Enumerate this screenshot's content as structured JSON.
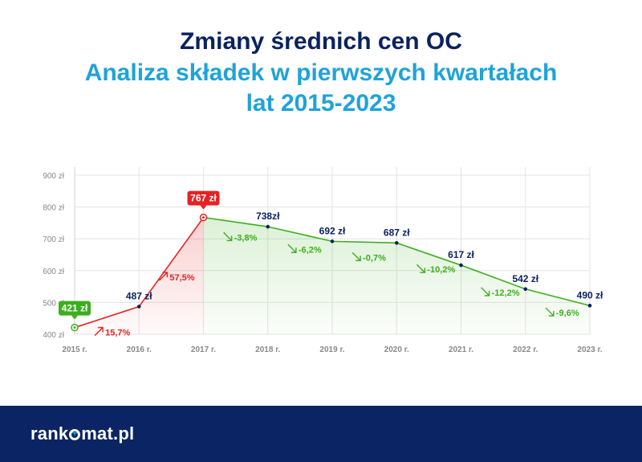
{
  "header": {
    "title_line1": "Zmiany średnich cen OC",
    "title_line2": "Analiza składek w pierwszych kwartałach",
    "title_line3": "lat 2015-2023"
  },
  "footer": {
    "logo_part1": "rank",
    "logo_part2": "mat.pl"
  },
  "chart_data": {
    "type": "line",
    "categories": [
      "2015 r.",
      "2016 r.",
      "2017 r.",
      "2018 r.",
      "2019 r.",
      "2020 r.",
      "2021 r.",
      "2022 r.",
      "2023 r."
    ],
    "values": [
      421,
      487,
      767,
      738,
      692,
      687,
      617,
      542,
      490
    ],
    "value_labels": [
      "421 zł",
      "487 zł",
      "767 zł",
      "738zł",
      "692 zł",
      "687 zł",
      "617 zł",
      "542 zł",
      "490 zł"
    ],
    "changes": [
      "",
      "15,7%",
      "57,5%",
      "-3,8%",
      "-6,2%",
      "-0,7%",
      "-10,2%",
      "-12,2%",
      "-9,6%"
    ],
    "ylim": [
      400,
      900
    ],
    "yticks": [
      400,
      500,
      600,
      700,
      800,
      900
    ],
    "ytick_labels": [
      "400 zł",
      "500 zł",
      "600 zł",
      "700 zł",
      "800 zł",
      "900 zł"
    ],
    "grid": true,
    "colors": {
      "rise": "#e52222",
      "fall": "#3cae1e",
      "value_text": "#0b2260",
      "grid": "#e3e3e3",
      "axis_text": "#888888"
    }
  }
}
